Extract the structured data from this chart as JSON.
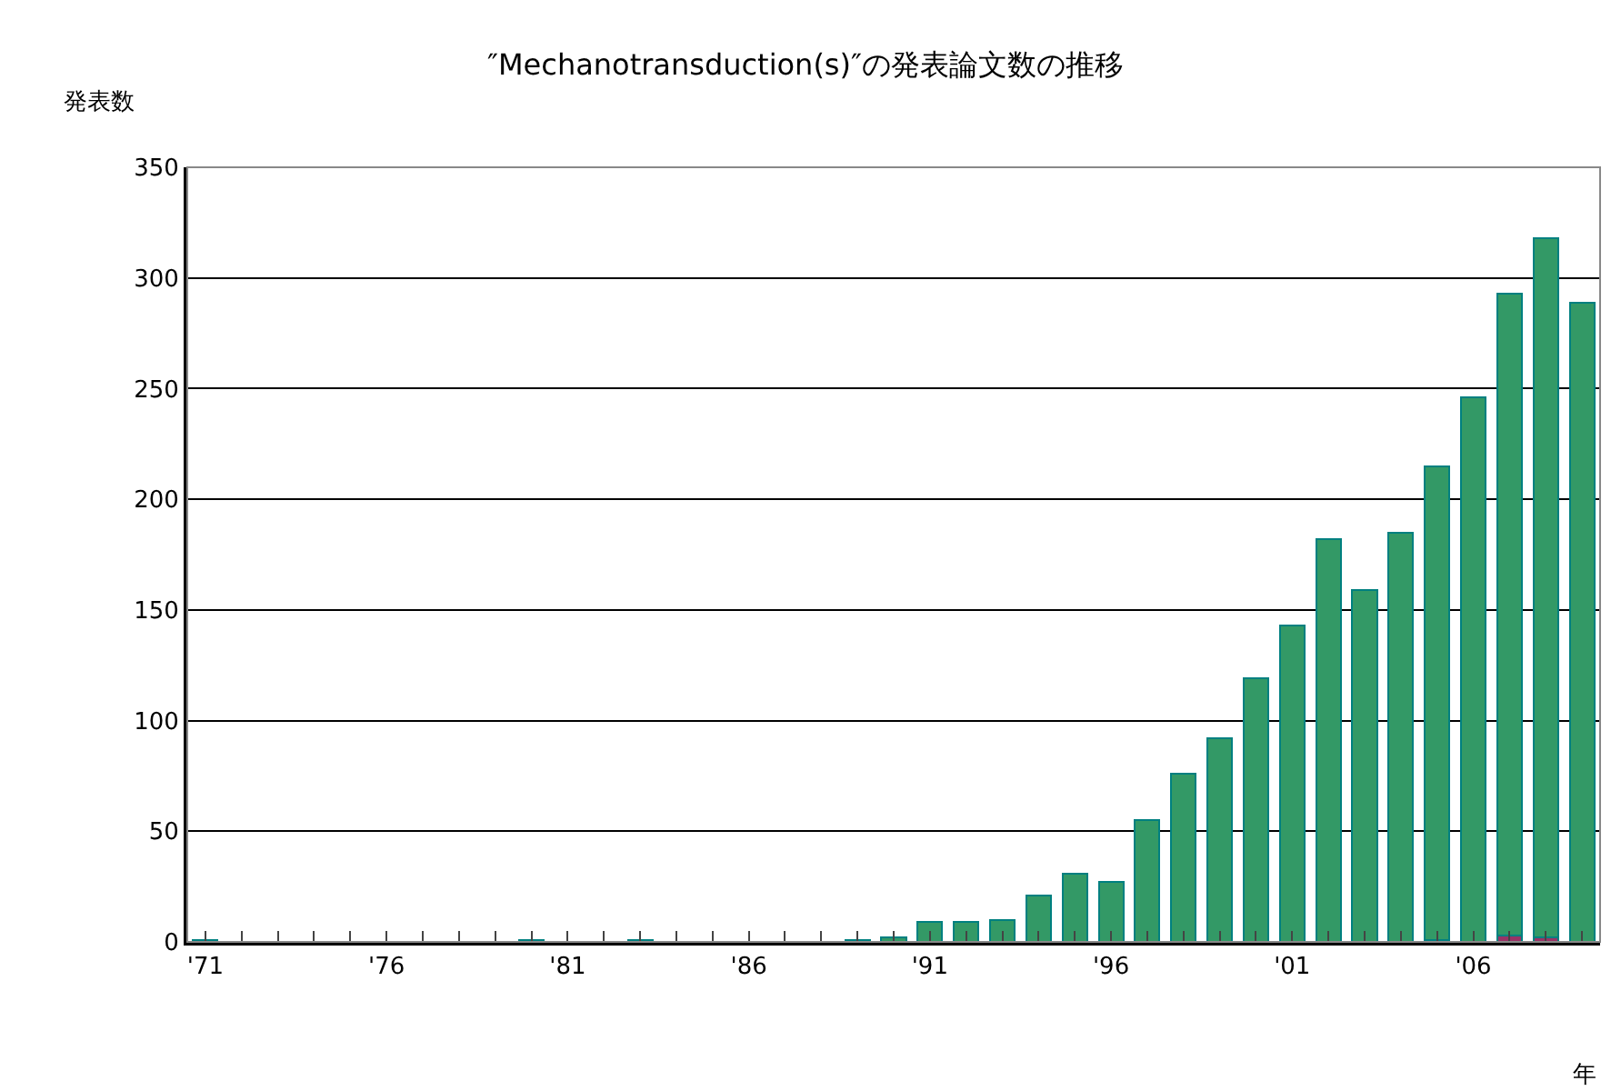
{
  "chart_data": {
    "type": "bar",
    "title": "″Mechanotransduction(s)″の発表論文数の推移",
    "ylabel": "発表数",
    "xlabel": "年",
    "categories": [
      "'71",
      null,
      null,
      null,
      null,
      "'76",
      null,
      null,
      null,
      null,
      "'81",
      null,
      null,
      null,
      null,
      "'86",
      null,
      null,
      null,
      null,
      "'91",
      null,
      null,
      null,
      null,
      "'96",
      null,
      null,
      null,
      null,
      "'01",
      null,
      null,
      null,
      null,
      "'06",
      null,
      null,
      null
    ],
    "stacked": true,
    "series": [
      {
        "color": "#993366",
        "values": [
          null,
          null,
          null,
          null,
          null,
          null,
          null,
          null,
          null,
          null,
          null,
          null,
          null,
          null,
          null,
          null,
          null,
          null,
          null,
          null,
          null,
          null,
          null,
          null,
          null,
          null,
          null,
          null,
          null,
          null,
          null,
          null,
          null,
          null,
          1,
          null,
          3,
          2,
          null
        ]
      },
      {
        "color": "#339966",
        "values": [
          1,
          null,
          null,
          null,
          null,
          null,
          null,
          null,
          null,
          1,
          null,
          null,
          1,
          null,
          null,
          null,
          null,
          null,
          1,
          2,
          9,
          9,
          10,
          21,
          31,
          27,
          55,
          76,
          92,
          119,
          143,
          182,
          159,
          185,
          214,
          246,
          290,
          316,
          289
        ]
      }
    ],
    "ylim": [
      0,
      350
    ],
    "yticks": [
      0,
      50,
      100,
      150,
      200,
      250,
      300,
      350
    ],
    "grid": "y"
  }
}
